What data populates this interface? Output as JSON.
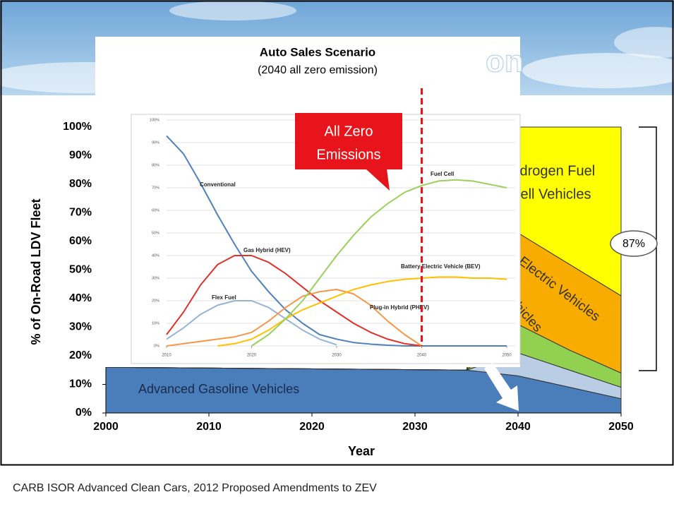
{
  "slide": {
    "title_fragment": "on",
    "footer": "CARB ISOR Advanced Clean Cars, 2012 Proposed Amendments to ZEV"
  },
  "chart_data": [
    {
      "type": "area",
      "stacked": true,
      "x_label": "Year",
      "y_label": "% of On-Road LDV Fleet",
      "x": [
        2000,
        2035,
        2040,
        2045,
        2050
      ],
      "xlim": [
        2000,
        2050
      ],
      "xticks": [
        2000,
        2010,
        2020,
        2030,
        2040,
        2050
      ],
      "ylim": [
        0,
        100
      ],
      "yticks": [
        {
          "value": 0,
          "label": "0%"
        },
        {
          "value": 10,
          "label": "10%"
        },
        {
          "value": 20,
          "label": "20%"
        },
        {
          "value": 30,
          "label": "30%"
        },
        {
          "value": 40,
          "label": "40%"
        },
        {
          "value": 50,
          "label": "50%"
        },
        {
          "value": 60,
          "label": "60%"
        },
        {
          "value": 70,
          "label": "70%"
        },
        {
          "value": 80,
          "label": "80%"
        },
        {
          "value": 90,
          "label": "90%"
        },
        {
          "value": 100,
          "label": "100%"
        }
      ],
      "series": [
        {
          "name": "Advanced Gasoline Vehicles",
          "color": "#4a7ebb",
          "values": [
            16,
            15,
            13,
            9,
            5
          ]
        },
        {
          "color": "#b9cde5",
          "values": [
            0,
            0,
            8,
            6,
            4
          ]
        },
        {
          "name": "Vehicles",
          "color": "#92d050",
          "values": [
            0,
            0,
            10,
            7,
            5
          ]
        },
        {
          "name": "Electric Vehicles",
          "color": "#f9ac00",
          "values": [
            0,
            0,
            32,
            30,
            27
          ]
        },
        {
          "name_lines": [
            "Hydrogen Fuel",
            "Cell Vehicles"
          ],
          "color": "#ffff00",
          "values": [
            0,
            0,
            37,
            48,
            59
          ]
        }
      ],
      "bracket_label": "87%"
    },
    {
      "type": "line",
      "title": "Auto Sales Scenario",
      "subtitle": "(2040 all zero emission)",
      "x": [
        2010,
        2012,
        2014,
        2016,
        2018,
        2020,
        2022,
        2024,
        2026,
        2028,
        2030,
        2032,
        2034,
        2036,
        2038,
        2040,
        2042,
        2044,
        2046,
        2048,
        2050
      ],
      "xlim": [
        2010,
        2050
      ],
      "xticks": [
        2010,
        2020,
        2030,
        2040,
        2050
      ],
      "ylim": [
        0,
        100
      ],
      "yticks": [
        {
          "value": 0,
          "label": "0%"
        },
        {
          "value": 10,
          "label": "10%"
        },
        {
          "value": 20,
          "label": "20%"
        },
        {
          "value": 30,
          "label": "30%"
        },
        {
          "value": 40,
          "label": "40%"
        },
        {
          "value": 50,
          "label": "50%"
        },
        {
          "value": 60,
          "label": "60%"
        },
        {
          "value": 70,
          "label": "70%"
        },
        {
          "value": 80,
          "label": "80%"
        },
        {
          "value": 90,
          "label": "90%"
        },
        {
          "value": 100,
          "label": "100%"
        }
      ],
      "grid": true,
      "series": [
        {
          "name": "Conventional",
          "color": "#4f81bd",
          "values": [
            93,
            85,
            72,
            58,
            45,
            33,
            24,
            16,
            10,
            5,
            3,
            1.5,
            0.8,
            0.3,
            0,
            0,
            0,
            0,
            0,
            0,
            0
          ]
        },
        {
          "name": "Gas Hybrid (HEV)",
          "color": "#e0302a",
          "values": [
            5,
            15,
            27,
            36,
            40,
            40,
            37,
            32,
            26,
            20,
            15,
            10,
            6,
            3,
            1,
            0,
            null,
            null,
            null,
            null,
            null
          ]
        },
        {
          "name": "Flex Fuel",
          "color": "#95b3d7",
          "values": [
            3,
            8,
            14,
            18,
            20,
            20,
            17,
            12,
            7,
            3,
            0.5,
            null,
            null,
            null,
            null,
            null,
            null,
            null,
            null,
            null,
            null
          ]
        },
        {
          "name": "Plug-in Hybrid (PHEV)",
          "color": "#f79646",
          "values": [
            0,
            1,
            2,
            3,
            4,
            6,
            11,
            17,
            22,
            24,
            25,
            23,
            18,
            11,
            5,
            0,
            null,
            null,
            null,
            null,
            null
          ]
        },
        {
          "name": "Battery Electric Vehicle (BEV)",
          "color": "#ffc000",
          "values": [
            null,
            null,
            null,
            0,
            1,
            3,
            7,
            12,
            16,
            19,
            22,
            25,
            27,
            28.5,
            29.5,
            30,
            30.5,
            30.5,
            30,
            30,
            29.5
          ]
        },
        {
          "name": "Fuel Cell",
          "color": "#9bd05a",
          "values": [
            null,
            null,
            null,
            null,
            null,
            0,
            5,
            12,
            20,
            30,
            40,
            49,
            57,
            63,
            68,
            71,
            73,
            73.5,
            73,
            71.5,
            70
          ]
        }
      ],
      "annotation": {
        "lines": [
          "All Zero",
          "Emissions"
        ],
        "x": 2040
      }
    }
  ]
}
